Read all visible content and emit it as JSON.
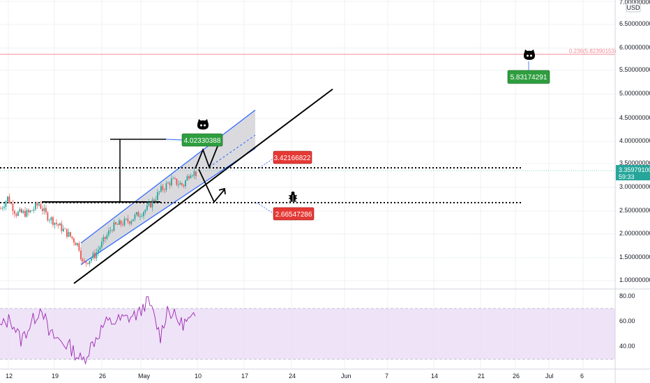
{
  "currency": "USD",
  "price_scale": {
    "ticks": [
      "7.00000000",
      "6.50000000",
      "6.00000000",
      "5.50000000",
      "5.00000000",
      "4.50000000",
      "4.00000000",
      "3.50000000",
      "3.00000000",
      "2.50000000",
      "2.00000000",
      "1.50000000",
      "1.00000000"
    ]
  },
  "rsi_scale": {
    "ticks": [
      "80.00",
      "60.00",
      "40.00"
    ]
  },
  "current_price": {
    "value": "3.35979100",
    "countdown": "59:33"
  },
  "fib_level": {
    "label": "0.236(5.82390153)"
  },
  "callouts": {
    "target_top": "5.83174291",
    "target_upper": "4.02330388",
    "breakout": "3.42166822",
    "support": "2.66547286"
  },
  "time_axis": {
    "ticks": [
      "12",
      "19",
      "26",
      "May",
      "10",
      "17",
      "24",
      "Jun",
      "7",
      "14",
      "21",
      "26",
      "Jul",
      "6"
    ]
  },
  "colors": {
    "up": "#26a69a",
    "down": "#ef5350",
    "channel": "#2962ff",
    "callout_green": "#2e9e3f",
    "callout_red": "#e53935",
    "rsi": "#9c27b0",
    "rsi_band": "#ead9f6",
    "fib": "#f28b98"
  },
  "icons": {
    "top_marker": "github-octocat-icon",
    "upper_marker": "github-octocat-icon",
    "support_marker": "bug-icon"
  },
  "chart_data": {
    "type": "candlestick",
    "y_axis": {
      "label": "USD",
      "range": [
        0.95,
        7.1
      ]
    },
    "horizontal_levels": [
      3.42166822,
      2.66547286,
      5.83174291
    ],
    "annotations": [
      "5.83174291",
      "4.02330388",
      "3.42166822",
      "2.66547286",
      "0.236(5.82390153)"
    ],
    "current_price": 3.359791,
    "rsi": {
      "levels": [
        70,
        30
      ],
      "visible_ticks": [
        80,
        60,
        40
      ],
      "range": [
        25,
        85
      ]
    },
    "grid": true
  }
}
